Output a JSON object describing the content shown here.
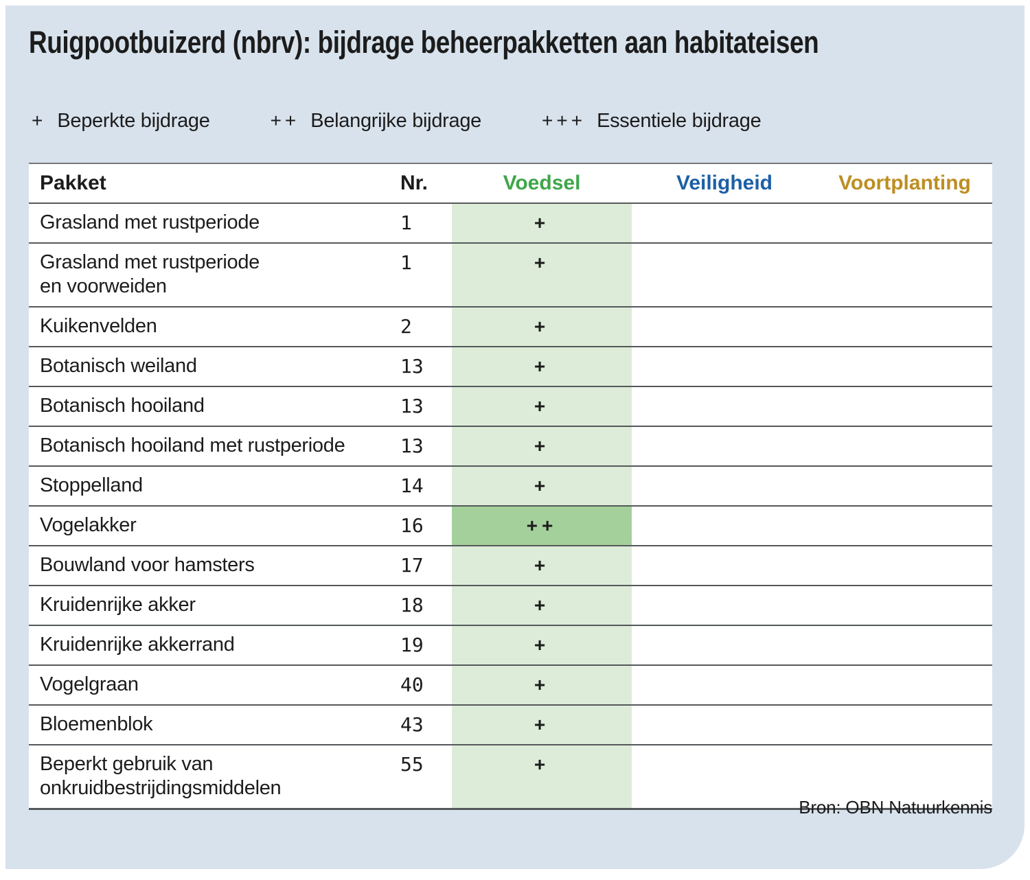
{
  "title": "Ruigpootbuizerd (nbrv): bijdrage beheerpakketten aan habitateisen",
  "legend": {
    "items": [
      {
        "symbol": "+",
        "label": "Beperkte bijdrage"
      },
      {
        "symbol": "++",
        "label": "Belangrijke bijdrage"
      },
      {
        "symbol": "+++",
        "label": "Essentiele bijdrage"
      }
    ]
  },
  "chart_data": {
    "type": "table",
    "title": "Ruigpootbuizerd (nbrv): bijdrage beheerpakketten aan habitateisen",
    "columns": [
      "Pakket",
      "Nr.",
      "Voedsel",
      "Veiligheid",
      "Voortplanting"
    ],
    "rows": [
      {
        "pakket": "Grasland met rustperiode",
        "nr": "1",
        "voedsel": "+",
        "veiligheid": "",
        "voortplanting": "",
        "highlight": false
      },
      {
        "pakket": "Grasland met rustperiode\nen voorweiden",
        "nr": "1",
        "voedsel": "+",
        "veiligheid": "",
        "voortplanting": "",
        "highlight": false
      },
      {
        "pakket": "Kuikenvelden",
        "nr": "2",
        "voedsel": "+",
        "veiligheid": "",
        "voortplanting": "",
        "highlight": false
      },
      {
        "pakket": "Botanisch weiland",
        "nr": "13",
        "voedsel": "+",
        "veiligheid": "",
        "voortplanting": "",
        "highlight": false
      },
      {
        "pakket": "Botanisch hooiland",
        "nr": "13",
        "voedsel": "+",
        "veiligheid": "",
        "voortplanting": "",
        "highlight": false
      },
      {
        "pakket": "Botanisch hooiland met rustperiode",
        "nr": "13",
        "voedsel": "+",
        "veiligheid": "",
        "voortplanting": "",
        "highlight": false
      },
      {
        "pakket": "Stoppelland",
        "nr": "14",
        "voedsel": "+",
        "veiligheid": "",
        "voortplanting": "",
        "highlight": false
      },
      {
        "pakket": "Vogelakker",
        "nr": "16",
        "voedsel": "++",
        "veiligheid": "",
        "voortplanting": "",
        "highlight": true
      },
      {
        "pakket": "Bouwland voor hamsters",
        "nr": "17",
        "voedsel": "+",
        "veiligheid": "",
        "voortplanting": "",
        "highlight": false
      },
      {
        "pakket": "Kruidenrijke akker",
        "nr": "18",
        "voedsel": "+",
        "veiligheid": "",
        "voortplanting": "",
        "highlight": false
      },
      {
        "pakket": "Kruidenrijke akkerrand",
        "nr": "19",
        "voedsel": "+",
        "veiligheid": "",
        "voortplanting": "",
        "highlight": false
      },
      {
        "pakket": "Vogelgraan",
        "nr": "40",
        "voedsel": "+",
        "veiligheid": "",
        "voortplanting": "",
        "highlight": false
      },
      {
        "pakket": "Bloemenblok",
        "nr": "43",
        "voedsel": "+",
        "veiligheid": "",
        "voortplanting": "",
        "highlight": false
      },
      {
        "pakket": "Beperkt gebruik van\nonkruidbestrijdingsmiddelen",
        "nr": "55",
        "voedsel": "+",
        "veiligheid": "",
        "voortplanting": "",
        "highlight": false
      }
    ]
  },
  "source": "Bron: OBN Natuurkennis",
  "colors": {
    "panel_background": "#d8e2ec",
    "voedsel_column_background": "#dcecd8",
    "voedsel_highlight_background": "#a4d19b",
    "voedsel_header_text": "#3fa64a",
    "veiligheid_header_text": "#1d5fa5",
    "voortplanting_header_text": "#bd8e22",
    "row_line": "#55585b",
    "text": "#1c1c1c"
  }
}
